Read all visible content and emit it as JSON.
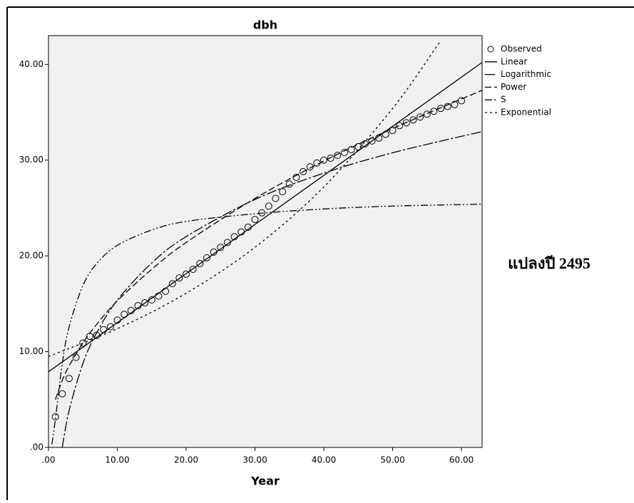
{
  "chart_data": {
    "type": "curve-fit",
    "title": "dbh",
    "x_label": "Year",
    "annotation": "แปลงปี 2495",
    "xlim": [
      0,
      63
    ],
    "ylim": [
      0,
      43
    ],
    "xticks": [
      {
        "value": 0,
        "label": ".00"
      },
      {
        "value": 10,
        "label": "10.00"
      },
      {
        "value": 20,
        "label": "20.00"
      },
      {
        "value": 30,
        "label": "30.00"
      },
      {
        "value": 40,
        "label": "40.00"
      },
      {
        "value": 50,
        "label": "50.00"
      },
      {
        "value": 60,
        "label": "60.00"
      }
    ],
    "yticks": [
      {
        "value": 0,
        "label": ".00"
      },
      {
        "value": 10,
        "label": "10.00"
      },
      {
        "value": 20,
        "label": "20.00"
      },
      {
        "value": 30,
        "label": "30.00"
      },
      {
        "value": 40,
        "label": "40.00"
      }
    ],
    "series": [
      {
        "name": "Observed",
        "marker": "circle",
        "color": "#000000",
        "x": [
          1,
          2,
          3,
          4,
          5,
          6,
          7,
          8,
          9,
          10,
          11,
          12,
          13,
          14,
          15,
          16,
          17,
          18,
          19,
          20,
          21,
          22,
          23,
          24,
          25,
          26,
          27,
          28,
          29,
          30,
          31,
          32,
          33,
          34,
          35,
          36,
          37,
          38,
          39,
          40,
          41,
          42,
          43,
          44,
          45,
          46,
          47,
          48,
          49,
          50,
          51,
          52,
          53,
          54,
          55,
          56,
          57,
          58,
          59,
          60
        ],
        "values": [
          3.2,
          5.6,
          7.2,
          9.4,
          10.9,
          11.6,
          11.7,
          12.3,
          12.6,
          13.3,
          13.9,
          14.3,
          14.8,
          15.1,
          15.4,
          15.8,
          16.3,
          17.1,
          17.7,
          18.1,
          18.6,
          19.2,
          19.8,
          20.4,
          20.9,
          21.4,
          22.0,
          22.5,
          23.0,
          23.8,
          24.5,
          25.2,
          26.0,
          26.7,
          27.5,
          28.2,
          28.8,
          29.3,
          29.7,
          30.0,
          30.2,
          30.5,
          30.8,
          31.1,
          31.4,
          31.7,
          32.0,
          32.3,
          32.7,
          33.1,
          33.6,
          33.9,
          34.2,
          34.5,
          34.8,
          35.1,
          35.4,
          35.6,
          35.8,
          36.2
        ]
      },
      {
        "name": "Linear",
        "dash": "none",
        "color": "#000000",
        "x": [
          0,
          63
        ],
        "values": [
          7.9,
          40.2
        ]
      },
      {
        "name": "Logarithmic",
        "dash": "14 3 3 3",
        "color": "#000000",
        "x": [
          2,
          3,
          5,
          7,
          10,
          15,
          20,
          30,
          40,
          50,
          63
        ],
        "values": [
          0.0,
          3.87,
          8.76,
          11.97,
          15.38,
          19.26,
          22.01,
          25.89,
          28.64,
          30.77,
          32.98
        ]
      },
      {
        "name": "Power",
        "dash": "9 4",
        "color": "#000000",
        "x": [
          1,
          2,
          3,
          5,
          7,
          10,
          15,
          20,
          30,
          40,
          50,
          63
        ],
        "values": [
          5.0,
          7.0,
          8.52,
          10.9,
          12.85,
          15.3,
          18.6,
          21.4,
          26.0,
          29.9,
          33.3,
          37.3
        ]
      },
      {
        "name": "S",
        "dash": "10 3 2 3 2 3",
        "color": "#000000",
        "x": [
          0.5,
          1,
          2,
          3,
          5,
          7,
          10,
          15,
          20,
          30,
          40,
          50,
          63
        ],
        "values": [
          0.32,
          2.92,
          8.76,
          12.6,
          16.9,
          19.2,
          21.1,
          22.7,
          23.6,
          24.4,
          24.9,
          25.2,
          25.4
        ]
      },
      {
        "name": "Exponential",
        "dash": "3 4",
        "color": "#000000",
        "x": [
          0,
          10,
          20,
          30,
          40,
          50,
          57
        ],
        "values": [
          9.5,
          12.4,
          16.1,
          20.9,
          27.2,
          35.4,
          42.5
        ]
      }
    ]
  }
}
